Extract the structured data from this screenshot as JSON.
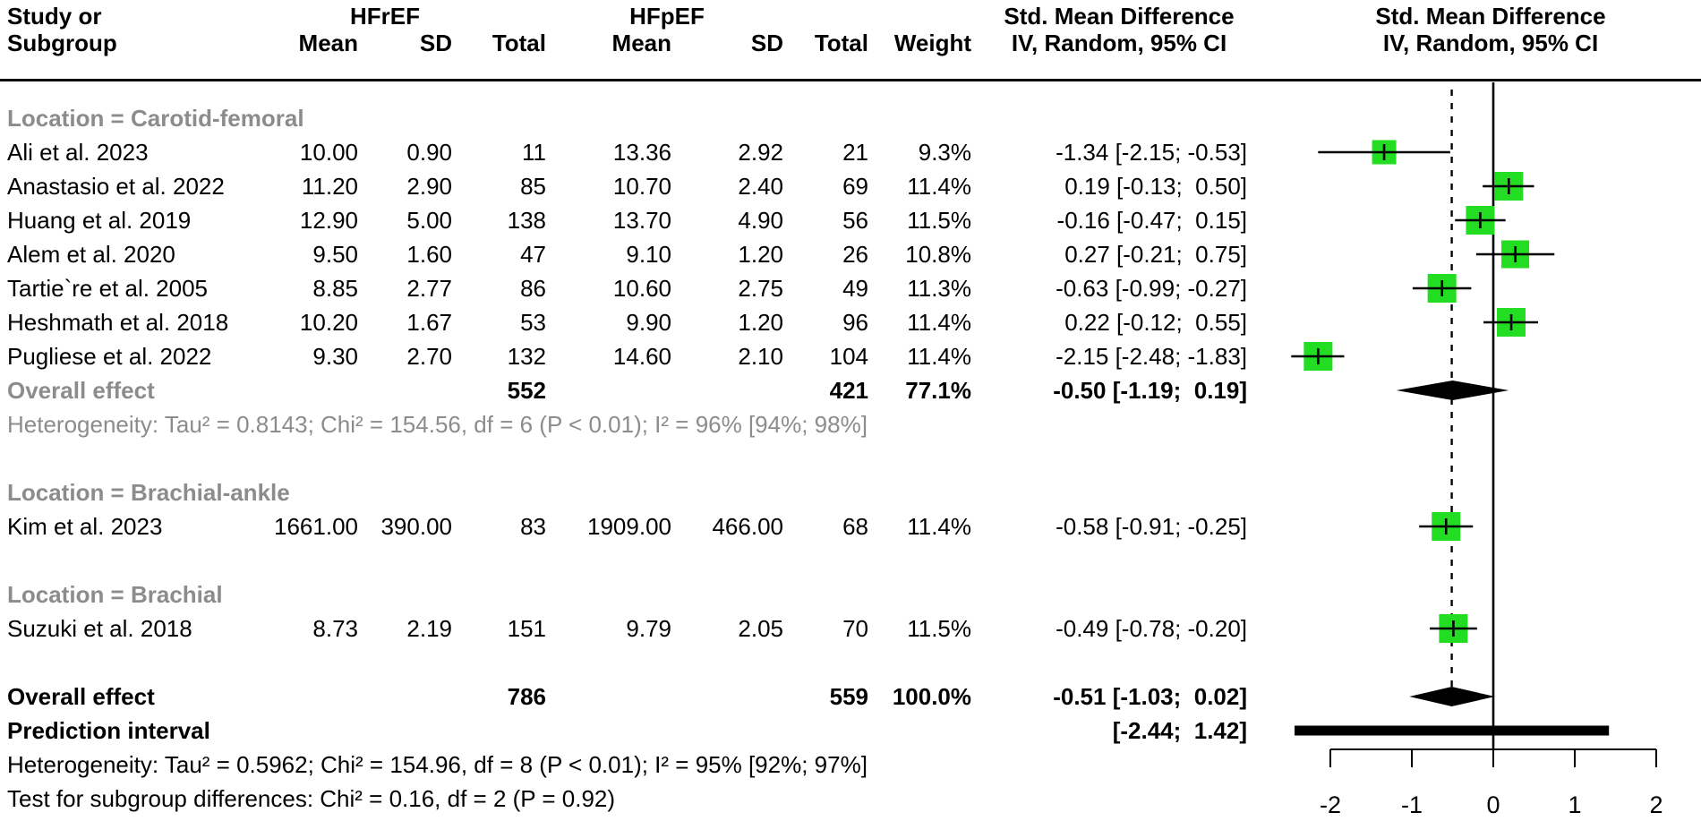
{
  "header": {
    "study_line1": "Study or",
    "study_line2": "Subgroup",
    "group1": "HFrEF",
    "group2": "HFpEF",
    "mean1": "Mean",
    "sd1": "SD",
    "total1": "Total",
    "mean2": "Mean",
    "sd2": "SD",
    "total2": "Total",
    "weight": "Weight",
    "smd_line1": "Std. Mean Difference",
    "smd_line2": "IV, Random, 95% CI",
    "plot_line1": "Std. Mean Difference",
    "plot_line2": "IV, Random, 95% CI"
  },
  "colors": {
    "square_green": "#22DD22",
    "gray_text": "#8c8c8c",
    "black": "#000000"
  },
  "chart_data": {
    "type": "forest",
    "effect_measure": "Std. Mean Difference (IV, Random, 95% CI)",
    "axis": {
      "ticks": [
        -2,
        -1,
        0,
        1,
        2
      ],
      "xlim": [
        -2.6,
        2.6
      ],
      "zero_line": 0,
      "dashed_line_at": -0.51
    },
    "rows": [
      {
        "kind": "subgroup",
        "label": "Location = Carotid-femoral"
      },
      {
        "kind": "study",
        "label": "Ali et al. 2023",
        "mean1": "10.00",
        "sd1": "0.90",
        "n1": "11",
        "mean2": "13.36",
        "sd2": "2.92",
        "n2": "21",
        "weight": "9.3%",
        "smd_text": "-1.34 [-2.15; -0.53]",
        "est": -1.34,
        "lo": -2.15,
        "hi": -0.53
      },
      {
        "kind": "study",
        "label": "Anastasio et al. 2022",
        "mean1": "11.20",
        "sd1": "2.90",
        "n1": "85",
        "mean2": "10.70",
        "sd2": "2.40",
        "n2": "69",
        "weight": "11.4%",
        "smd_text": "0.19 [-0.13;  0.50]",
        "est": 0.19,
        "lo": -0.13,
        "hi": 0.5
      },
      {
        "kind": "study",
        "label": "Huang et al. 2019",
        "mean1": "12.90",
        "sd1": "5.00",
        "n1": "138",
        "mean2": "13.70",
        "sd2": "4.90",
        "n2": "56",
        "weight": "11.5%",
        "smd_text": "-0.16 [-0.47;  0.15]",
        "est": -0.16,
        "lo": -0.47,
        "hi": 0.15
      },
      {
        "kind": "study",
        "label": "Alem et al. 2020",
        "mean1": "9.50",
        "sd1": "1.60",
        "n1": "47",
        "mean2": "9.10",
        "sd2": "1.20",
        "n2": "26",
        "weight": "10.8%",
        "smd_text": "0.27 [-0.21;  0.75]",
        "est": 0.27,
        "lo": -0.21,
        "hi": 0.75
      },
      {
        "kind": "study",
        "label": "Tartie`re et al. 2005",
        "mean1": "8.85",
        "sd1": "2.77",
        "n1": "86",
        "mean2": "10.60",
        "sd2": "2.75",
        "n2": "49",
        "weight": "11.3%",
        "smd_text": "-0.63 [-0.99; -0.27]",
        "est": -0.63,
        "lo": -0.99,
        "hi": -0.27
      },
      {
        "kind": "study",
        "label": "Heshmath et al. 2018",
        "mean1": "10.20",
        "sd1": "1.67",
        "n1": "53",
        "mean2": "9.90",
        "sd2": "1.20",
        "n2": "96",
        "weight": "11.4%",
        "smd_text": "0.22 [-0.12;  0.55]",
        "est": 0.22,
        "lo": -0.12,
        "hi": 0.55
      },
      {
        "kind": "study",
        "label": "Pugliese et al. 2022",
        "mean1": "9.30",
        "sd1": "2.70",
        "n1": "132",
        "mean2": "14.60",
        "sd2": "2.10",
        "n2": "104",
        "weight": "11.4%",
        "smd_text": "-2.15 [-2.48; -1.83]",
        "est": -2.15,
        "lo": -2.48,
        "hi": -1.83
      },
      {
        "kind": "summary",
        "label": "Overall effect",
        "gray_label": true,
        "n1": "552",
        "n2": "421",
        "weight": "77.1%",
        "smd_text": "-0.50 [-1.19;  0.19]",
        "est": -0.5,
        "lo": -1.19,
        "hi": 0.19
      },
      {
        "kind": "note",
        "gray": true,
        "label": "Heterogeneity: Tau² = 0.8143; Chi² = 154.56, df = 6 (P < 0.01); I² = 96% [94%; 98%]"
      },
      {
        "kind": "spacer"
      },
      {
        "kind": "subgroup",
        "label": "Location = Brachial-ankle"
      },
      {
        "kind": "study",
        "label": "Kim et al. 2023",
        "mean1": "1661.00",
        "sd1": "390.00",
        "n1": "83",
        "mean2": "1909.00",
        "sd2": "466.00",
        "n2": "68",
        "weight": "11.4%",
        "smd_text": "-0.58 [-0.91; -0.25]",
        "est": -0.58,
        "lo": -0.91,
        "hi": -0.25
      },
      {
        "kind": "spacer"
      },
      {
        "kind": "subgroup",
        "label": "Location = Brachial"
      },
      {
        "kind": "study",
        "label": "Suzuki et al. 2018",
        "mean1": "8.73",
        "sd1": "2.19",
        "n1": "151",
        "mean2": "9.79",
        "sd2": "2.05",
        "n2": "70",
        "weight": "11.5%",
        "smd_text": "-0.49 [-0.78; -0.20]",
        "est": -0.49,
        "lo": -0.78,
        "hi": -0.2
      },
      {
        "kind": "spacer"
      },
      {
        "kind": "summary",
        "label": "Overall effect",
        "gray_label": false,
        "n1": "786",
        "n2": "559",
        "weight": "100.0%",
        "smd_text": "-0.51 [-1.03;  0.02]",
        "est": -0.51,
        "lo": -1.03,
        "hi": 0.02
      },
      {
        "kind": "prediction",
        "label": "Prediction interval",
        "smd_text": "[-2.44;  1.42]",
        "lo": -2.44,
        "hi": 1.42
      },
      {
        "kind": "note",
        "gray": false,
        "label": "Heterogeneity: Tau² = 0.5962; Chi² = 154.96, df = 8 (P < 0.01); I² = 95% [92%; 97%]"
      },
      {
        "kind": "note",
        "gray": false,
        "label": "Test for subgroup differences: Chi² = 0.16, df = 2 (P = 0.92)"
      }
    ]
  }
}
